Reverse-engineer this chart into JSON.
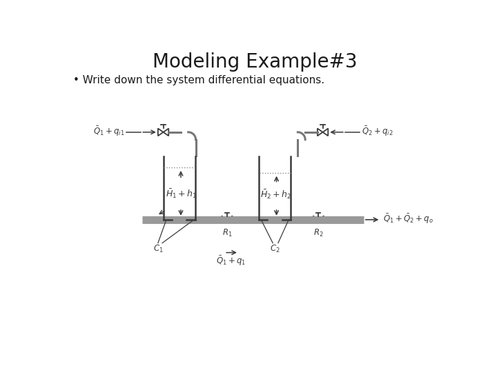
{
  "title": "Modeling Example#3",
  "subtitle": "• Write down the system differential equations.",
  "bg_color": "#ffffff",
  "title_fontsize": 20,
  "subtitle_fontsize": 11,
  "diagram_color": "#3a3a3a",
  "label_color": "#3a3a3a",
  "pipe_color": "#888888",
  "label1_left": "$\\bar{Q}_1 + q_{i1}$",
  "label1_right": "$\\bar{Q}_2 + q_{i2}$",
  "label_h1": "$\\bar{H}_1 + h_1$",
  "label_h2": "$\\bar{H}_2 + h_2$",
  "label_c1": "$C_1$",
  "label_r1": "$R_1$",
  "label_c2": "$C_2$",
  "label_r2": "$R_2$",
  "label_q1": "$\\bar{Q}_1 + q_1$",
  "label_out": "$\\bar{Q}_1 + \\bar{Q}_2 + q_o$"
}
